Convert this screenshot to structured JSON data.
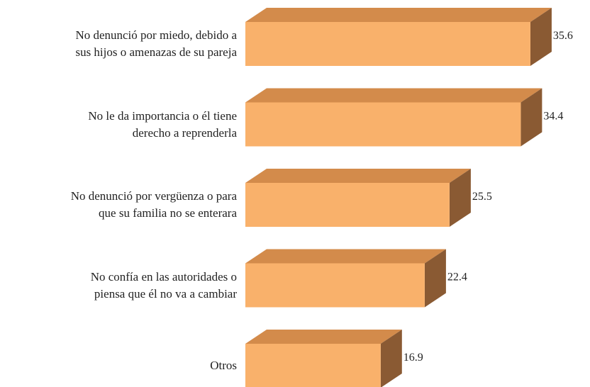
{
  "chart_data": {
    "type": "bar3d-horizontal",
    "categories": [
      "No denunció por miedo, debido a\nsus hijos o amenazas de su pareja",
      "No le da importancia o él tiene\nderecho a reprenderla",
      "No denunció por vergüenza o para\nque su familia no se enterara",
      "No confía en las autoridades o\npiensa que él no va a cambiar",
      "Otros"
    ],
    "values": [
      35.6,
      34.4,
      25.5,
      22.4,
      16.9
    ],
    "colors": {
      "front": "#f9b16b",
      "top": "#d38b4b",
      "side": "#8a5a33"
    }
  }
}
